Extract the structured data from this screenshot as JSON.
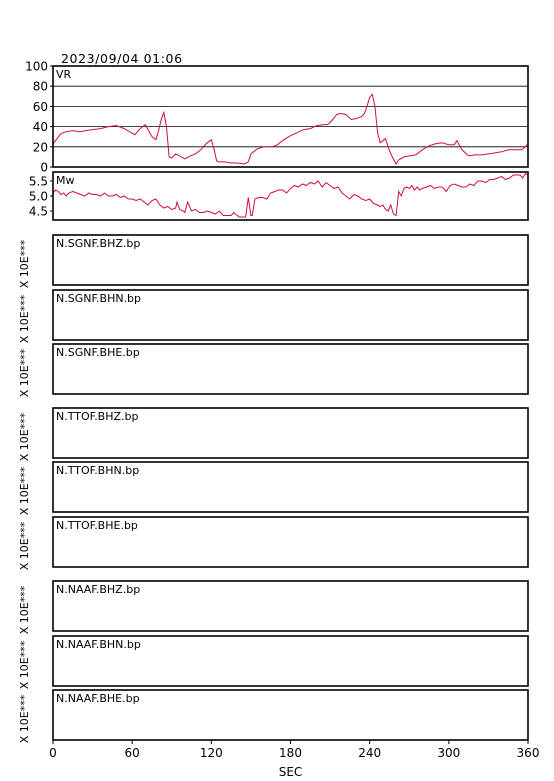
{
  "header": {
    "timestamp": "2023/09/04 01:06"
  },
  "chart_data": [
    {
      "type": "line",
      "panel": "VR",
      "label": "VR",
      "ylim": [
        0,
        100
      ],
      "yticks": [
        0,
        20,
        40,
        60,
        80,
        100
      ],
      "grid": true,
      "color": "#d0103a",
      "x": [
        0,
        3,
        6,
        10,
        15,
        20,
        25,
        30,
        36,
        42,
        48,
        54,
        58,
        62,
        66,
        70,
        72,
        75,
        78,
        80,
        82,
        84,
        86,
        88,
        90,
        93,
        96,
        100,
        104,
        108,
        112,
        116,
        120,
        122,
        124,
        126,
        130,
        135,
        140,
        145,
        148,
        150,
        155,
        160,
        166,
        170,
        175,
        180,
        185,
        190,
        195,
        200,
        205,
        208,
        210,
        212,
        215,
        218,
        222,
        226,
        230,
        234,
        236,
        238,
        240,
        242,
        244,
        246,
        248,
        250,
        252,
        254,
        256,
        258,
        260,
        262,
        266,
        270,
        275,
        280,
        285,
        290,
        295,
        300,
        304,
        306,
        310,
        315,
        320,
        325,
        330,
        335,
        340,
        345,
        350,
        355,
        358,
        360
      ],
      "y": [
        23,
        28,
        33,
        35,
        36,
        35,
        36,
        37,
        38,
        40,
        41,
        38,
        35,
        32,
        38,
        42,
        37,
        30,
        27,
        36,
        47,
        54,
        40,
        10,
        9,
        13,
        11,
        8,
        11,
        13,
        17,
        23,
        27,
        18,
        6,
        5,
        5,
        4,
        4,
        3,
        5,
        13,
        18,
        20,
        20,
        22,
        27,
        31,
        34,
        37,
        38,
        41,
        42,
        42,
        44,
        47,
        52,
        53,
        52,
        47,
        48,
        50,
        53,
        60,
        69,
        72,
        60,
        34,
        24,
        26,
        28,
        20,
        13,
        8,
        3,
        7,
        10,
        11,
        12,
        17,
        21,
        23,
        24,
        22,
        22,
        26,
        17,
        11,
        12,
        12,
        13,
        14,
        15,
        17,
        17,
        17,
        20,
        23
      ]
    },
    {
      "type": "line",
      "panel": "Mw",
      "label": "Mw",
      "ylim": [
        4.2,
        5.8
      ],
      "yticks": [
        4.5,
        5.0,
        5.5
      ],
      "grid": false,
      "color": "#d0103a",
      "x": [
        0,
        2,
        4,
        6,
        8,
        10,
        12,
        15,
        18,
        21,
        24,
        27,
        30,
        33,
        36,
        39,
        42,
        45,
        48,
        51,
        54,
        57,
        60,
        63,
        66,
        69,
        72,
        75,
        78,
        81,
        84,
        87,
        90,
        93,
        94,
        96,
        99,
        100,
        102,
        105,
        108,
        111,
        114,
        117,
        120,
        123,
        126,
        129,
        132,
        135,
        137,
        138,
        140,
        141,
        143,
        146,
        148,
        150,
        151,
        153,
        156,
        159,
        162,
        165,
        168,
        171,
        174,
        177,
        180,
        183,
        186,
        189,
        192,
        195,
        198,
        201,
        204,
        207,
        210,
        213,
        216,
        219,
        222,
        225,
        228,
        231,
        234,
        237,
        240,
        243,
        246,
        248,
        250,
        252,
        254,
        256,
        258,
        260,
        262,
        264,
        266,
        268,
        270,
        272,
        274,
        276,
        278,
        280,
        283,
        286,
        289,
        292,
        295,
        298,
        301,
        304,
        307,
        310,
        313,
        316,
        319,
        322,
        325,
        328,
        331,
        334,
        337,
        340,
        343,
        346,
        349,
        352,
        354,
        356,
        358,
        360
      ],
      "y": [
        5.1,
        5.2,
        5.15,
        5.05,
        5.1,
        5.0,
        5.1,
        5.15,
        5.1,
        5.05,
        5.0,
        5.1,
        5.05,
        5.05,
        5.0,
        5.1,
        5.0,
        5.0,
        5.05,
        4.95,
        5.0,
        4.9,
        4.9,
        4.85,
        4.9,
        4.8,
        4.7,
        4.85,
        4.9,
        4.7,
        4.6,
        4.65,
        4.55,
        4.6,
        4.8,
        4.55,
        4.5,
        4.45,
        4.8,
        4.5,
        4.55,
        4.45,
        4.45,
        4.5,
        4.45,
        4.4,
        4.5,
        4.35,
        4.35,
        4.35,
        4.45,
        4.4,
        4.35,
        4.3,
        4.3,
        4.3,
        4.95,
        4.35,
        4.35,
        4.9,
        4.95,
        4.95,
        4.9,
        5.1,
        5.15,
        5.2,
        5.2,
        5.1,
        5.25,
        5.35,
        5.3,
        5.4,
        5.35,
        5.45,
        5.4,
        5.5,
        5.3,
        5.45,
        5.35,
        5.25,
        5.3,
        5.1,
        5.0,
        4.9,
        5.05,
        5.0,
        4.9,
        4.85,
        4.9,
        4.75,
        4.7,
        4.65,
        4.7,
        4.55,
        4.5,
        4.7,
        4.4,
        4.35,
        5.15,
        5.0,
        5.25,
        5.3,
        5.25,
        5.35,
        5.2,
        5.3,
        5.2,
        5.25,
        5.3,
        5.35,
        5.25,
        5.3,
        5.3,
        5.15,
        5.35,
        5.4,
        5.35,
        5.3,
        5.3,
        5.4,
        5.35,
        5.5,
        5.5,
        5.45,
        5.55,
        5.55,
        5.6,
        5.65,
        5.55,
        5.6,
        5.7,
        5.7,
        5.7,
        5.6,
        5.75,
        5.7
      ]
    }
  ],
  "traces": [
    {
      "station": "N.SGNF.BHZ.bp",
      "axis_label": "X 10E***"
    },
    {
      "station": "N.SGNF.BHN.bp",
      "axis_label": "X 10E***"
    },
    {
      "station": "N.SGNF.BHE.bp",
      "axis_label": "X 10E***"
    },
    {
      "station": "N.TTOF.BHZ.bp",
      "axis_label": "X 10E***"
    },
    {
      "station": "N.TTOF.BHN.bp",
      "axis_label": "X 10E***"
    },
    {
      "station": "N.TTOF.BHE.bp",
      "axis_label": "X 10E***"
    },
    {
      "station": "N.NAAF.BHZ.bp",
      "axis_label": "X 10E***"
    },
    {
      "station": "N.NAAF.BHN.bp",
      "axis_label": "X 10E***"
    },
    {
      "station": "N.NAAF.BHE.bp",
      "axis_label": "X 10E***"
    }
  ],
  "x_axis": {
    "ticks": [
      "0",
      "60",
      "120",
      "180",
      "240",
      "300",
      "360"
    ],
    "label": "SEC",
    "xlim": [
      0,
      360
    ]
  }
}
